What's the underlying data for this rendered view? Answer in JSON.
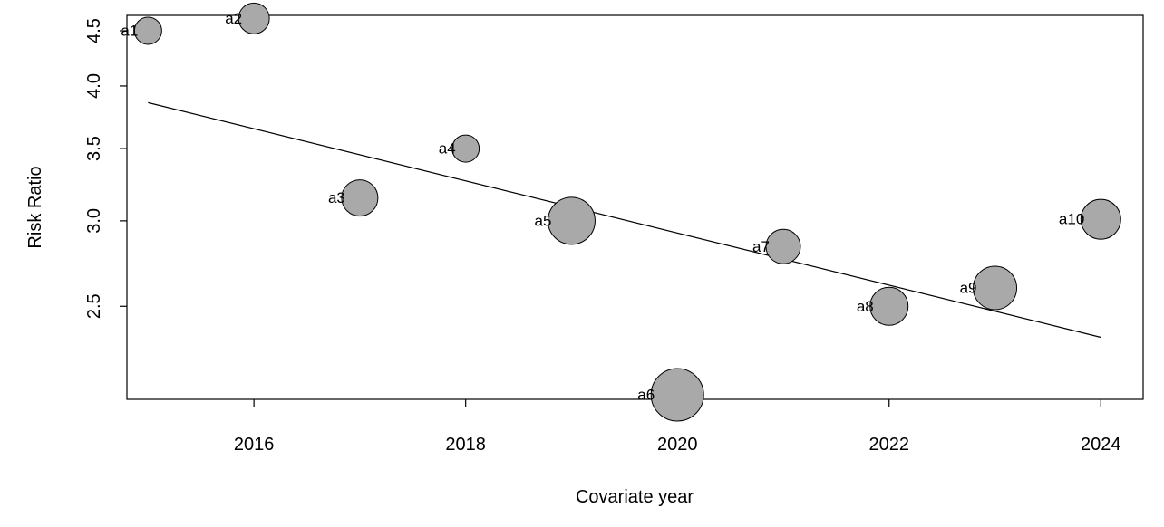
{
  "chart_data": {
    "type": "scatter",
    "xlabel": "Covariate year",
    "ylabel": "Risk Ratio",
    "x_ticks": [
      2016,
      2018,
      2020,
      2022,
      2024
    ],
    "y_ticks": [
      2.5,
      3.0,
      3.5,
      4.0,
      4.5
    ],
    "y_scale": "log",
    "xlim": [
      2014.8,
      2024.4
    ],
    "ylim": [
      2.05,
      4.65
    ],
    "grid": false,
    "legend": "none",
    "points": [
      {
        "label": "a1",
        "x": 2015,
        "y": 4.5,
        "weight": 0.45
      },
      {
        "label": "a2",
        "x": 2016,
        "y": 4.62,
        "weight": 0.55
      },
      {
        "label": "a3",
        "x": 2017,
        "y": 3.15,
        "weight": 0.7
      },
      {
        "label": "a4",
        "x": 2018,
        "y": 3.5,
        "weight": 0.45
      },
      {
        "label": "a5",
        "x": 2019,
        "y": 3.0,
        "weight": 1.0
      },
      {
        "label": "a6",
        "x": 2020,
        "y": 2.07,
        "weight": 1.15
      },
      {
        "label": "a7",
        "x": 2021,
        "y": 2.84,
        "weight": 0.65
      },
      {
        "label": "a8",
        "x": 2022,
        "y": 2.5,
        "weight": 0.75
      },
      {
        "label": "a9",
        "x": 2023,
        "y": 2.6,
        "weight": 0.9
      },
      {
        "label": "a10",
        "x": 2024,
        "y": 3.01,
        "weight": 0.8
      }
    ],
    "regression_line": {
      "x": [
        2015,
        2024
      ],
      "y": [
        3.86,
        2.34
      ]
    },
    "colors": {
      "point_fill": "#a9a9a9",
      "point_stroke": "#000000",
      "line": "#000000"
    }
  }
}
